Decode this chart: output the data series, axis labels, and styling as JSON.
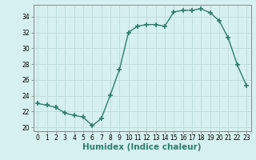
{
  "x": [
    0,
    1,
    2,
    3,
    4,
    5,
    6,
    7,
    8,
    9,
    10,
    11,
    12,
    13,
    14,
    15,
    16,
    17,
    18,
    19,
    20,
    21,
    22,
    23
  ],
  "y": [
    23.0,
    22.8,
    22.5,
    21.8,
    21.5,
    21.3,
    20.2,
    21.1,
    24.1,
    27.3,
    32.0,
    32.8,
    33.0,
    33.0,
    32.8,
    34.6,
    34.8,
    34.8,
    35.0,
    34.5,
    33.5,
    31.3,
    27.9,
    25.3
  ],
  "line_color": "#2e7d6e",
  "marker": "+",
  "marker_size": 4,
  "background_color": "#d6f0ef",
  "grid_color": "#c0dedd",
  "xlabel": "Humidex (Indice chaleur)",
  "ylim": [
    19.5,
    35.5
  ],
  "yticks": [
    20,
    22,
    24,
    26,
    28,
    30,
    32,
    34
  ],
  "xticks": [
    0,
    1,
    2,
    3,
    4,
    5,
    6,
    7,
    8,
    9,
    10,
    11,
    12,
    13,
    14,
    15,
    16,
    17,
    18,
    19,
    20,
    21,
    22,
    23
  ],
  "tick_fontsize": 5.5,
  "xlabel_fontsize": 7.5,
  "line_width": 1.0
}
